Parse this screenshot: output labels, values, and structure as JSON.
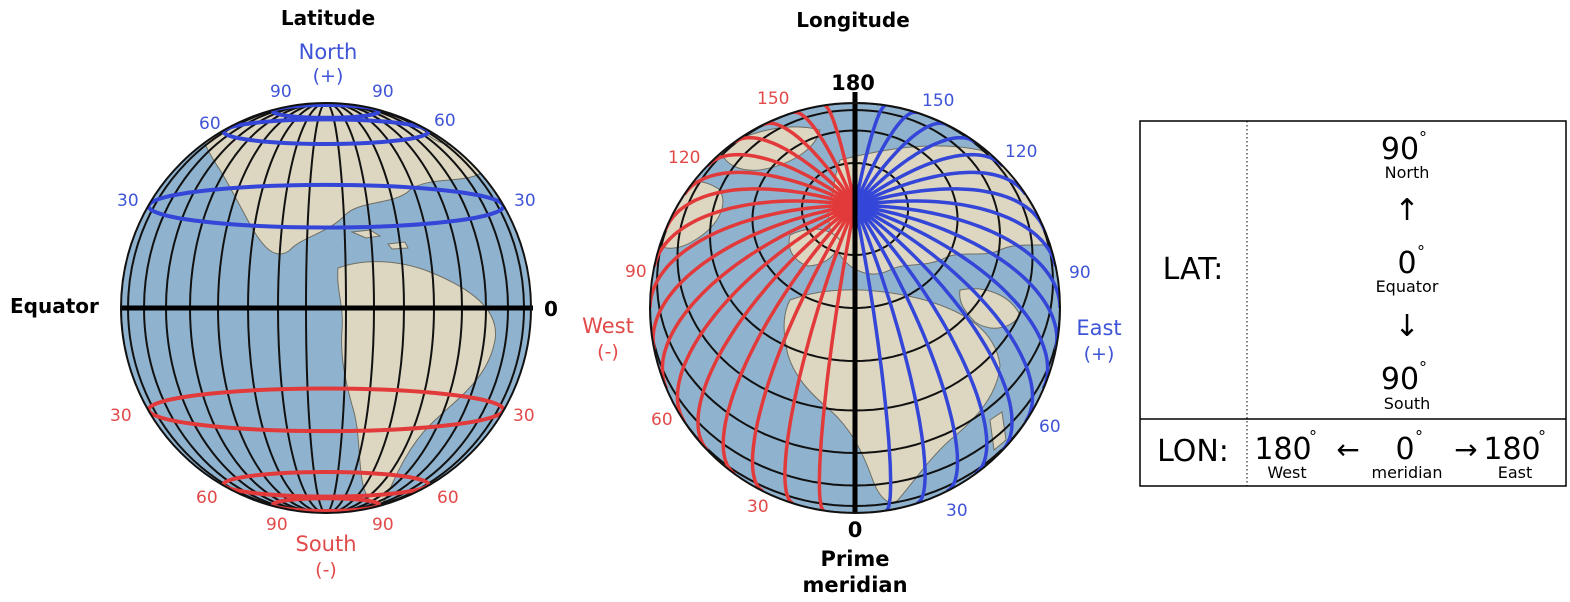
{
  "latitude_globe": {
    "title": "Latitude",
    "north": "North",
    "north_sign": "(+)",
    "south": "South",
    "south_sign": "(-)",
    "equator": "Equator",
    "zero": "0",
    "north_labels": {
      "left90": "90",
      "right90": "90",
      "left60": "60",
      "right60": "60",
      "left30": "30",
      "right30": "30"
    },
    "south_labels": {
      "left30": "30",
      "right30": "30",
      "left60": "60",
      "right60": "60",
      "left90": "90",
      "right90": "90"
    },
    "north_parallels_deg": [
      30,
      60,
      75
    ],
    "south_parallels_deg": [
      -30,
      -60,
      -75
    ]
  },
  "longitude_globe": {
    "title": "Longitude",
    "top180": "180",
    "bottom0": "0",
    "prime": "Prime",
    "meridian": "meridian",
    "west": "West",
    "west_sign": "(-)",
    "east": "East",
    "east_sign": "(+)",
    "west_labels": {
      "l150": "150",
      "l120": "120",
      "l90": "90",
      "l60": "60",
      "l30": "30"
    },
    "east_labels": {
      "l150": "150",
      "l120": "120",
      "l90": "90",
      "l60": "60",
      "l30": "30"
    }
  },
  "coord_table": {
    "lat_label": "LAT:",
    "lon_label": "LON:",
    "lat_top_value": "90",
    "lat_top_name": "North",
    "lat_mid_value": "0",
    "lat_mid_name": "Equator",
    "lat_bot_value": "90",
    "lat_bot_name": "South",
    "degree_symbol": "°",
    "arrow_up": "↑",
    "arrow_down": "↓",
    "arrow_left": "←",
    "arrow_right": "→",
    "lon_west_value": "180",
    "lon_west_name": "West",
    "lon_mid_value": "0",
    "lon_mid_name": "meridian",
    "lon_east_value": "180",
    "lon_east_name": "East"
  },
  "colors": {
    "ocean": "#8fb3cf",
    "land": "#ddd6c1",
    "grid": "#111111",
    "north_east_blue": "#3346d8",
    "south_west_red": "#e23a3a",
    "label_blue": "#3f54d6",
    "label_red": "#e24a4a"
  }
}
